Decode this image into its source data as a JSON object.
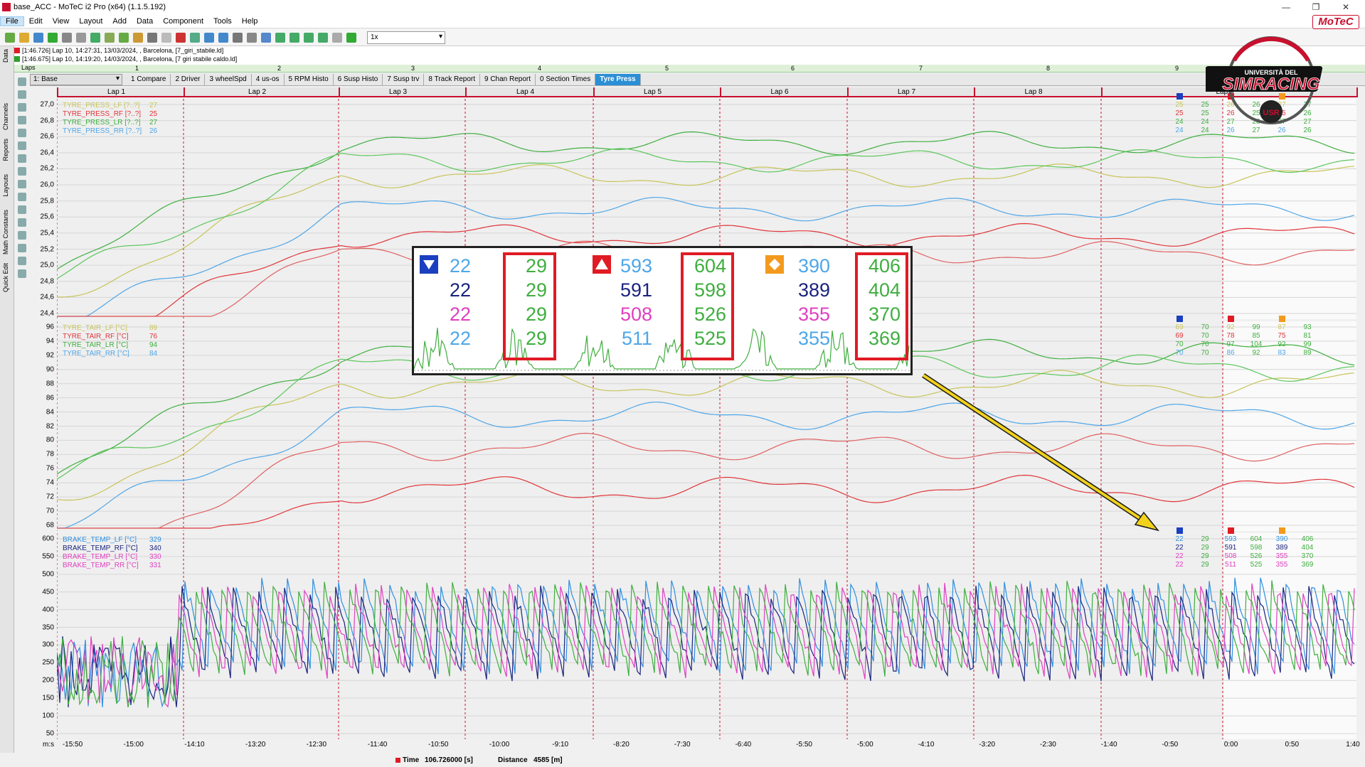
{
  "window": {
    "title": "base_ACC - MoTeC i2 Pro (x64) (1.1.5.192)",
    "controls": [
      "—",
      "❐",
      "✕"
    ]
  },
  "menu": [
    "File",
    "Edit",
    "View",
    "Layout",
    "Add",
    "Data",
    "Component",
    "Tools",
    "Help"
  ],
  "brand": {
    "motec": "MoTeC",
    "logo_top": "UNIVERSITÀ DEL",
    "logo_main": "SIMRACING",
    "logo_bottom": "USR"
  },
  "toolbar": {
    "zoom_value": "1x"
  },
  "files": [
    {
      "text": "[1:46.726] Lap 10, 14:27:31, 13/03/2024, , Barcelona, [7_giri_stabile.ld]",
      "color": "#e01b24"
    },
    {
      "text": "[1:46.675] Lap 10, 14:19:20, 14/03/2024, , Barcelona, [7 giri stabile caldo.ld]",
      "color": "#2ca02c"
    }
  ],
  "laps_strip": {
    "label": "Laps",
    "ticks": [
      "1",
      "2",
      "3",
      "4",
      "5",
      "6",
      "7",
      "8",
      "9"
    ]
  },
  "worksheet": {
    "selector": "1: Base"
  },
  "tabs": [
    {
      "label": "1 Compare",
      "active": false
    },
    {
      "label": "2 Driver",
      "active": false
    },
    {
      "label": "3 wheelSpd",
      "active": false
    },
    {
      "label": "4 us-os",
      "active": false
    },
    {
      "label": "5 RPM Histo",
      "active": false
    },
    {
      "label": "6 Susp Histo",
      "active": false
    },
    {
      "label": "7 Susp trv",
      "active": false
    },
    {
      "label": "8 Track Report",
      "active": false
    },
    {
      "label": "9 Chan Report",
      "active": false
    },
    {
      "label": "0 Section Times",
      "active": false
    },
    {
      "label": "Tyre Press",
      "active": true
    }
  ],
  "laps": [
    "Lap 1",
    "Lap 2",
    "Lap 3",
    "Lap 4",
    "Lap 5",
    "Lap 6",
    "Lap 7",
    "Lap 8",
    "Lap 9"
  ],
  "left_rail": [
    "Data",
    "Channels",
    "Reports",
    "Layouts",
    "Math Constants",
    "Quick Edit"
  ],
  "colors": {
    "lf": "#c7c45a",
    "rf": "#e0353a",
    "lr": "#3fae3f",
    "rr": "#4ea6e8",
    "lap_marker": "#c8102e",
    "brake_lf": "#2e8fe0",
    "brake_rf": "#1a237e",
    "brake_lr": "#e040c0",
    "brake_rr": "#3fae3f"
  },
  "panels": {
    "pressure": {
      "channels": [
        {
          "name": "TYRE_PRESS_LF [?..?]",
          "value": "27"
        },
        {
          "name": "TYRE_PRESS_RF [?..?]",
          "value": "25"
        },
        {
          "name": "TYRE_PRESS_LR [?..?]",
          "value": "27"
        },
        {
          "name": "TYRE_PRESS_RR [?..?]",
          "value": "26"
        }
      ],
      "yticks": [
        "27,0",
        "26,8",
        "26,6",
        "26,4",
        "26,2",
        "26,0",
        "25,8",
        "25,6",
        "25,4",
        "25,2",
        "25,0",
        "24,8",
        "24,6",
        "24,4"
      ],
      "right_values": [
        [
          "25",
          "25",
          "26",
          "26",
          "27",
          "27"
        ],
        [
          "25",
          "25",
          "26",
          "25",
          "25",
          "26"
        ],
        [
          "24",
          "24",
          "27",
          "28",
          "27",
          "27"
        ],
        [
          "24",
          "24",
          "26",
          "27",
          "26",
          "26"
        ]
      ]
    },
    "air": {
      "channels": [
        {
          "name": "TYRE_TAIR_LF [°C]",
          "value": "89"
        },
        {
          "name": "TYRE_TAIR_RF [°C]",
          "value": "76"
        },
        {
          "name": "TYRE_TAIR_LR [°C]",
          "value": "94"
        },
        {
          "name": "TYRE_TAIR_RR [°C]",
          "value": "84"
        }
      ],
      "yticks": [
        "96",
        "94",
        "92",
        "90",
        "88",
        "86",
        "84",
        "82",
        "80",
        "78",
        "76",
        "74",
        "72",
        "70",
        "68"
      ],
      "right_values": [
        [
          "69",
          "70",
          "92",
          "99",
          "87",
          "93"
        ],
        [
          "69",
          "70",
          "78",
          "85",
          "75",
          "81"
        ],
        [
          "70",
          "70",
          "97",
          "104",
          "92",
          "99"
        ],
        [
          "70",
          "70",
          "86",
          "92",
          "83",
          "89"
        ]
      ]
    },
    "brake": {
      "channels": [
        {
          "name": "BRAKE_TEMP_LF [°C]",
          "value": "329"
        },
        {
          "name": "BRAKE_TEMP_RF [°C]",
          "value": "340"
        },
        {
          "name": "BRAKE_TEMP_LR [°C]",
          "value": "330"
        },
        {
          "name": "BRAKE_TEMP_RR [°C]",
          "value": "331"
        }
      ],
      "yticks": [
        "600",
        "550",
        "500",
        "450",
        "400",
        "350",
        "300",
        "250",
        "200",
        "150",
        "100",
        "50"
      ],
      "right_values": [
        [
          "22",
          "29",
          "593",
          "604",
          "390",
          "406"
        ],
        [
          "22",
          "29",
          "591",
          "598",
          "389",
          "404"
        ],
        [
          "22",
          "29",
          "508",
          "526",
          "355",
          "370"
        ],
        [
          "22",
          "29",
          "511",
          "525",
          "355",
          "369"
        ]
      ]
    }
  },
  "zoom_callout": {
    "col_min": [
      "22",
      "22",
      "22",
      "22"
    ],
    "col_min2": [
      "29",
      "29",
      "29",
      "29"
    ],
    "col_max": [
      "593",
      "591",
      "508",
      "511"
    ],
    "col_max2": [
      "604",
      "598",
      "526",
      "525"
    ],
    "col_avg": [
      "390",
      "389",
      "355",
      "355"
    ],
    "col_avg2": [
      "406",
      "404",
      "370",
      "369"
    ]
  },
  "x_axis": {
    "unit": "m:s",
    "ticks": [
      "-15:50",
      "-15:00",
      "-14:10",
      "-13:20",
      "-12:30",
      "-11:40",
      "-10:50",
      "-10:00",
      "-9:10",
      "-8:20",
      "-7:30",
      "-6:40",
      "-5:50",
      "-5:00",
      "-4:10",
      "-3:20",
      "-2:30",
      "-1:40",
      "-0:50",
      "0:00",
      "0:50",
      "1:40"
    ]
  },
  "status": {
    "time_label": "Time",
    "time_value": "106.726000 [s]",
    "dist_label": "Distance",
    "dist_value": "4585 [m]"
  }
}
